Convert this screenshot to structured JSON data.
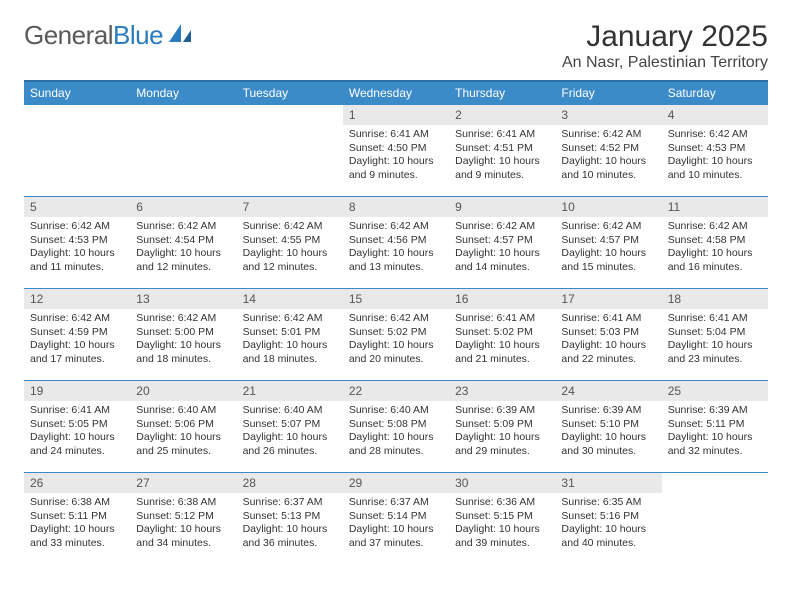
{
  "logo": {
    "part1": "General",
    "part2": "Blue"
  },
  "title": "January 2025",
  "subtitle": "An Nasr, Palestinian Territory",
  "colors": {
    "header_bg": "#3b8bc9",
    "header_border": "#2a6fa5",
    "daynum_bg": "#e9e9e9",
    "text": "#333333",
    "logo_gray": "#5a5a5a",
    "logo_blue": "#2b7bbf"
  },
  "day_labels": [
    "Sunday",
    "Monday",
    "Tuesday",
    "Wednesday",
    "Thursday",
    "Friday",
    "Saturday"
  ],
  "weeks": [
    [
      {
        "num": "",
        "lines": []
      },
      {
        "num": "",
        "lines": []
      },
      {
        "num": "",
        "lines": []
      },
      {
        "num": "1",
        "lines": [
          "Sunrise: 6:41 AM",
          "Sunset: 4:50 PM",
          "Daylight: 10 hours",
          "and 9 minutes."
        ]
      },
      {
        "num": "2",
        "lines": [
          "Sunrise: 6:41 AM",
          "Sunset: 4:51 PM",
          "Daylight: 10 hours",
          "and 9 minutes."
        ]
      },
      {
        "num": "3",
        "lines": [
          "Sunrise: 6:42 AM",
          "Sunset: 4:52 PM",
          "Daylight: 10 hours",
          "and 10 minutes."
        ]
      },
      {
        "num": "4",
        "lines": [
          "Sunrise: 6:42 AM",
          "Sunset: 4:53 PM",
          "Daylight: 10 hours",
          "and 10 minutes."
        ]
      }
    ],
    [
      {
        "num": "5",
        "lines": [
          "Sunrise: 6:42 AM",
          "Sunset: 4:53 PM",
          "Daylight: 10 hours",
          "and 11 minutes."
        ]
      },
      {
        "num": "6",
        "lines": [
          "Sunrise: 6:42 AM",
          "Sunset: 4:54 PM",
          "Daylight: 10 hours",
          "and 12 minutes."
        ]
      },
      {
        "num": "7",
        "lines": [
          "Sunrise: 6:42 AM",
          "Sunset: 4:55 PM",
          "Daylight: 10 hours",
          "and 12 minutes."
        ]
      },
      {
        "num": "8",
        "lines": [
          "Sunrise: 6:42 AM",
          "Sunset: 4:56 PM",
          "Daylight: 10 hours",
          "and 13 minutes."
        ]
      },
      {
        "num": "9",
        "lines": [
          "Sunrise: 6:42 AM",
          "Sunset: 4:57 PM",
          "Daylight: 10 hours",
          "and 14 minutes."
        ]
      },
      {
        "num": "10",
        "lines": [
          "Sunrise: 6:42 AM",
          "Sunset: 4:57 PM",
          "Daylight: 10 hours",
          "and 15 minutes."
        ]
      },
      {
        "num": "11",
        "lines": [
          "Sunrise: 6:42 AM",
          "Sunset: 4:58 PM",
          "Daylight: 10 hours",
          "and 16 minutes."
        ]
      }
    ],
    [
      {
        "num": "12",
        "lines": [
          "Sunrise: 6:42 AM",
          "Sunset: 4:59 PM",
          "Daylight: 10 hours",
          "and 17 minutes."
        ]
      },
      {
        "num": "13",
        "lines": [
          "Sunrise: 6:42 AM",
          "Sunset: 5:00 PM",
          "Daylight: 10 hours",
          "and 18 minutes."
        ]
      },
      {
        "num": "14",
        "lines": [
          "Sunrise: 6:42 AM",
          "Sunset: 5:01 PM",
          "Daylight: 10 hours",
          "and 18 minutes."
        ]
      },
      {
        "num": "15",
        "lines": [
          "Sunrise: 6:42 AM",
          "Sunset: 5:02 PM",
          "Daylight: 10 hours",
          "and 20 minutes."
        ]
      },
      {
        "num": "16",
        "lines": [
          "Sunrise: 6:41 AM",
          "Sunset: 5:02 PM",
          "Daylight: 10 hours",
          "and 21 minutes."
        ]
      },
      {
        "num": "17",
        "lines": [
          "Sunrise: 6:41 AM",
          "Sunset: 5:03 PM",
          "Daylight: 10 hours",
          "and 22 minutes."
        ]
      },
      {
        "num": "18",
        "lines": [
          "Sunrise: 6:41 AM",
          "Sunset: 5:04 PM",
          "Daylight: 10 hours",
          "and 23 minutes."
        ]
      }
    ],
    [
      {
        "num": "19",
        "lines": [
          "Sunrise: 6:41 AM",
          "Sunset: 5:05 PM",
          "Daylight: 10 hours",
          "and 24 minutes."
        ]
      },
      {
        "num": "20",
        "lines": [
          "Sunrise: 6:40 AM",
          "Sunset: 5:06 PM",
          "Daylight: 10 hours",
          "and 25 minutes."
        ]
      },
      {
        "num": "21",
        "lines": [
          "Sunrise: 6:40 AM",
          "Sunset: 5:07 PM",
          "Daylight: 10 hours",
          "and 26 minutes."
        ]
      },
      {
        "num": "22",
        "lines": [
          "Sunrise: 6:40 AM",
          "Sunset: 5:08 PM",
          "Daylight: 10 hours",
          "and 28 minutes."
        ]
      },
      {
        "num": "23",
        "lines": [
          "Sunrise: 6:39 AM",
          "Sunset: 5:09 PM",
          "Daylight: 10 hours",
          "and 29 minutes."
        ]
      },
      {
        "num": "24",
        "lines": [
          "Sunrise: 6:39 AM",
          "Sunset: 5:10 PM",
          "Daylight: 10 hours",
          "and 30 minutes."
        ]
      },
      {
        "num": "25",
        "lines": [
          "Sunrise: 6:39 AM",
          "Sunset: 5:11 PM",
          "Daylight: 10 hours",
          "and 32 minutes."
        ]
      }
    ],
    [
      {
        "num": "26",
        "lines": [
          "Sunrise: 6:38 AM",
          "Sunset: 5:11 PM",
          "Daylight: 10 hours",
          "and 33 minutes."
        ]
      },
      {
        "num": "27",
        "lines": [
          "Sunrise: 6:38 AM",
          "Sunset: 5:12 PM",
          "Daylight: 10 hours",
          "and 34 minutes."
        ]
      },
      {
        "num": "28",
        "lines": [
          "Sunrise: 6:37 AM",
          "Sunset: 5:13 PM",
          "Daylight: 10 hours",
          "and 36 minutes."
        ]
      },
      {
        "num": "29",
        "lines": [
          "Sunrise: 6:37 AM",
          "Sunset: 5:14 PM",
          "Daylight: 10 hours",
          "and 37 minutes."
        ]
      },
      {
        "num": "30",
        "lines": [
          "Sunrise: 6:36 AM",
          "Sunset: 5:15 PM",
          "Daylight: 10 hours",
          "and 39 minutes."
        ]
      },
      {
        "num": "31",
        "lines": [
          "Sunrise: 6:35 AM",
          "Sunset: 5:16 PM",
          "Daylight: 10 hours",
          "and 40 minutes."
        ]
      },
      {
        "num": "",
        "lines": []
      }
    ]
  ]
}
